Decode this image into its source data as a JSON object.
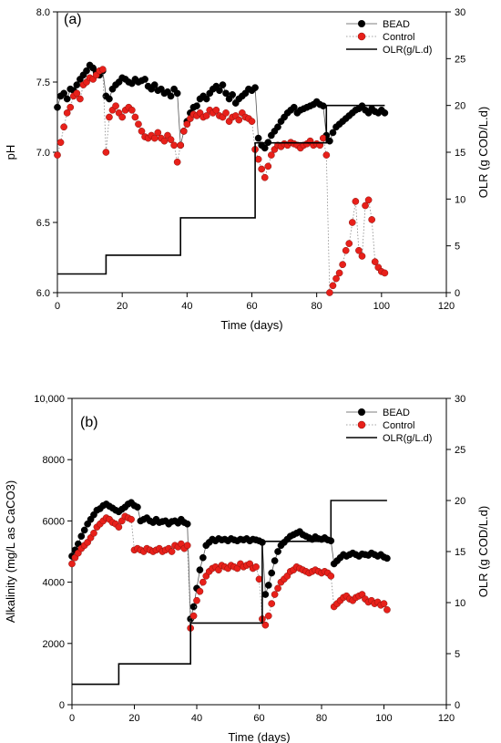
{
  "chart_data": [
    {
      "type": "line",
      "panel_label": "(a)",
      "xlabel": "Time (days)",
      "ylabel": "pH",
      "y2label": "OLR (g COD/L.d)",
      "xlim": [
        0,
        120
      ],
      "ylim": [
        6.0,
        8.0
      ],
      "y2lim": [
        0,
        30
      ],
      "xticks": [
        0,
        20,
        40,
        60,
        80,
        100,
        120
      ],
      "yticks": [
        6.0,
        6.5,
        7.0,
        7.5,
        8.0
      ],
      "y2ticks": [
        0,
        5,
        10,
        15,
        20,
        25,
        30
      ],
      "ytick_labels": [
        "6.0",
        "6.5",
        "7.0",
        "7.5",
        "8.0"
      ],
      "legend_position": "top-right",
      "series": [
        {
          "name": "BEAD",
          "axis": "left",
          "style": "black-dots-line",
          "color": "#000000",
          "x": [
            0,
            1,
            2,
            3,
            4,
            5,
            6,
            7,
            8,
            9,
            10,
            11,
            12,
            13,
            14,
            15,
            16,
            17,
            18,
            19,
            20,
            21,
            22,
            23,
            24,
            25,
            26,
            27,
            28,
            29,
            30,
            31,
            32,
            33,
            34,
            35,
            36,
            37,
            38,
            39,
            40,
            41,
            42,
            43,
            44,
            45,
            46,
            47,
            48,
            49,
            50,
            51,
            52,
            53,
            54,
            55,
            56,
            57,
            58,
            59,
            60,
            61,
            62,
            63,
            64,
            65,
            66,
            67,
            68,
            69,
            70,
            71,
            72,
            73,
            74,
            75,
            76,
            77,
            78,
            79,
            80,
            81,
            82,
            83,
            84,
            85,
            86,
            87,
            88,
            89,
            90,
            91,
            92,
            93,
            94,
            95,
            96,
            97,
            98,
            99,
            100,
            101
          ],
          "y": [
            7.32,
            7.4,
            7.42,
            7.38,
            7.45,
            7.44,
            7.48,
            7.52,
            7.55,
            7.58,
            7.62,
            7.6,
            7.57,
            7.55,
            7.58,
            7.4,
            7.38,
            7.45,
            7.48,
            7.5,
            7.53,
            7.52,
            7.5,
            7.49,
            7.52,
            7.5,
            7.51,
            7.52,
            7.47,
            7.45,
            7.48,
            7.44,
            7.45,
            7.42,
            7.43,
            7.4,
            7.45,
            7.42,
            7.05,
            7.15,
            7.22,
            7.28,
            7.32,
            7.33,
            7.38,
            7.4,
            7.38,
            7.42,
            7.45,
            7.47,
            7.44,
            7.48,
            7.42,
            7.38,
            7.41,
            7.35,
            7.38,
            7.4,
            7.42,
            7.45,
            7.44,
            7.46,
            7.1,
            7.05,
            7.03,
            7.07,
            7.12,
            7.15,
            7.18,
            7.22,
            7.25,
            7.28,
            7.3,
            7.32,
            7.28,
            7.3,
            7.31,
            7.32,
            7.33,
            7.34,
            7.36,
            7.34,
            7.33,
            7.12,
            7.08,
            7.14,
            7.18,
            7.2,
            7.22,
            7.24,
            7.26,
            7.28,
            7.3,
            7.31,
            7.33,
            7.3,
            7.28,
            7.31,
            7.29,
            7.28,
            7.3,
            7.28
          ]
        },
        {
          "name": "Control",
          "axis": "left",
          "style": "red-dots-dotted",
          "color": "#e8201a",
          "x": [
            0,
            1,
            2,
            3,
            4,
            5,
            6,
            7,
            8,
            9,
            10,
            11,
            12,
            13,
            14,
            15,
            16,
            17,
            18,
            19,
            20,
            21,
            22,
            23,
            24,
            25,
            26,
            27,
            28,
            29,
            30,
            31,
            32,
            33,
            34,
            35,
            36,
            37,
            38,
            39,
            40,
            41,
            42,
            43,
            44,
            45,
            46,
            47,
            48,
            49,
            50,
            51,
            52,
            53,
            54,
            55,
            56,
            57,
            58,
            59,
            60,
            61,
            62,
            63,
            64,
            65,
            66,
            67,
            68,
            69,
            70,
            71,
            72,
            73,
            74,
            75,
            76,
            77,
            78,
            79,
            80,
            81,
            82,
            83,
            84,
            85,
            86,
            87,
            88,
            89,
            90,
            91,
            92,
            93,
            94,
            95,
            96,
            97,
            98,
            99,
            100,
            101
          ],
          "y": [
            6.98,
            7.07,
            7.18,
            7.28,
            7.32,
            7.4,
            7.42,
            7.38,
            7.48,
            7.5,
            7.53,
            7.52,
            7.55,
            7.58,
            7.59,
            7.0,
            7.25,
            7.3,
            7.33,
            7.28,
            7.25,
            7.3,
            7.32,
            7.3,
            7.25,
            7.2,
            7.15,
            7.11,
            7.1,
            7.12,
            7.1,
            7.14,
            7.1,
            7.08,
            7.12,
            7.09,
            7.05,
            6.93,
            7.05,
            7.15,
            7.2,
            7.24,
            7.27,
            7.26,
            7.28,
            7.25,
            7.26,
            7.3,
            7.28,
            7.3,
            7.26,
            7.25,
            7.28,
            7.22,
            7.25,
            7.26,
            7.23,
            7.28,
            7.25,
            7.24,
            7.22,
            7.02,
            6.95,
            6.88,
            6.82,
            6.9,
            6.98,
            7.02,
            7.05,
            7.04,
            7.06,
            7.05,
            7.07,
            7.06,
            7.05,
            7.03,
            7.05,
            7.06,
            7.08,
            7.05,
            7.06,
            7.05,
            7.1,
            6.98,
            6.0,
            6.05,
            6.1,
            6.14,
            6.2,
            6.3,
            6.35,
            6.5,
            6.65,
            6.3,
            6.26,
            6.62,
            6.66,
            6.52,
            6.22,
            6.18,
            6.15,
            6.14
          ]
        },
        {
          "name": "OLR(g/L.d)",
          "axis": "right",
          "style": "black-step-line",
          "color": "#000000",
          "x": [
            0,
            15,
            15,
            38,
            38,
            61,
            61,
            83,
            83,
            101
          ],
          "y": [
            2,
            2,
            4,
            4,
            8,
            8,
            16,
            16,
            20,
            20
          ]
        }
      ]
    },
    {
      "type": "line",
      "panel_label": "(b)",
      "xlabel": "Time (days)",
      "ylabel": "Alkalinity (mg/L as CaCO3)",
      "y2label": "OLR (g COD/L.d)",
      "xlim": [
        0,
        120
      ],
      "ylim": [
        0,
        10000
      ],
      "y2lim": [
        0,
        30
      ],
      "xticks": [
        0,
        20,
        40,
        60,
        80,
        100,
        120
      ],
      "yticks": [
        0,
        2000,
        4000,
        6000,
        8000,
        10000
      ],
      "y2ticks": [
        0,
        5,
        10,
        15,
        20,
        25,
        30
      ],
      "ytick_labels": [
        "0",
        "2000",
        "4000",
        "6000",
        "8000",
        "10,000"
      ],
      "legend_position": "top-right",
      "series": [
        {
          "name": "BEAD",
          "axis": "left",
          "style": "black-dots-line",
          "color": "#000000",
          "x": [
            0,
            1,
            2,
            3,
            4,
            5,
            6,
            7,
            8,
            9,
            10,
            11,
            12,
            13,
            14,
            15,
            16,
            17,
            18,
            19,
            20,
            21,
            22,
            23,
            24,
            25,
            26,
            27,
            28,
            29,
            30,
            31,
            32,
            33,
            34,
            35,
            36,
            37,
            38,
            39,
            40,
            41,
            42,
            43,
            44,
            45,
            46,
            47,
            48,
            49,
            50,
            51,
            52,
            53,
            54,
            55,
            56,
            57,
            58,
            59,
            60,
            61,
            62,
            63,
            64,
            65,
            66,
            67,
            68,
            69,
            70,
            71,
            72,
            73,
            74,
            75,
            76,
            77,
            78,
            79,
            80,
            81,
            82,
            83,
            84,
            85,
            86,
            87,
            88,
            89,
            90,
            91,
            92,
            93,
            94,
            95,
            96,
            97,
            98,
            99,
            100,
            101
          ],
          "y": [
            4850,
            5050,
            5250,
            5500,
            5700,
            5900,
            6050,
            6200,
            6350,
            6400,
            6500,
            6550,
            6480,
            6420,
            6350,
            6300,
            6380,
            6450,
            6550,
            6600,
            6500,
            6450,
            6000,
            6050,
            6100,
            6000,
            5950,
            6050,
            5950,
            5980,
            6000,
            5900,
            5980,
            6000,
            5930,
            6050,
            5950,
            5900,
            2800,
            3200,
            3800,
            4400,
            4800,
            5200,
            5300,
            5400,
            5350,
            5420,
            5380,
            5400,
            5350,
            5420,
            5380,
            5350,
            5400,
            5380,
            5420,
            5350,
            5400,
            5380,
            5350,
            5300,
            3600,
            3900,
            4300,
            4700,
            5000,
            5200,
            5300,
            5400,
            5500,
            5550,
            5600,
            5650,
            5550,
            5500,
            5450,
            5400,
            5480,
            5420,
            5400,
            5450,
            5380,
            5350,
            4600,
            4700,
            4800,
            4900,
            4850,
            4900,
            4950,
            4900,
            4850,
            4920,
            4900,
            4880,
            4950,
            4900,
            4850,
            4900,
            4820,
            4780
          ]
        },
        {
          "name": "Control",
          "axis": "left",
          "style": "red-dots-dotted",
          "color": "#e8201a",
          "x": [
            0,
            1,
            2,
            3,
            4,
            5,
            6,
            7,
            8,
            9,
            10,
            11,
            12,
            13,
            14,
            15,
            16,
            17,
            18,
            19,
            20,
            21,
            22,
            23,
            24,
            25,
            26,
            27,
            28,
            29,
            30,
            31,
            32,
            33,
            34,
            35,
            36,
            37,
            38,
            39,
            40,
            41,
            42,
            43,
            44,
            45,
            46,
            47,
            48,
            49,
            50,
            51,
            52,
            53,
            54,
            55,
            56,
            57,
            58,
            59,
            60,
            61,
            62,
            63,
            64,
            65,
            66,
            67,
            68,
            69,
            70,
            71,
            72,
            73,
            74,
            75,
            76,
            77,
            78,
            79,
            80,
            81,
            82,
            83,
            84,
            85,
            86,
            87,
            88,
            89,
            90,
            91,
            92,
            93,
            94,
            95,
            96,
            97,
            98,
            99,
            100,
            101
          ],
          "y": [
            4600,
            4800,
            4950,
            5100,
            5200,
            5300,
            5450,
            5600,
            5800,
            5900,
            6000,
            6100,
            6050,
            5950,
            5900,
            5800,
            6000,
            6150,
            6100,
            6050,
            5050,
            5100,
            5050,
            5000,
            5100,
            5050,
            5000,
            5050,
            5100,
            5000,
            5050,
            5100,
            5000,
            5200,
            5150,
            5250,
            5100,
            5200,
            2500,
            2900,
            3400,
            3700,
            4000,
            4200,
            4350,
            4450,
            4500,
            4400,
            4550,
            4500,
            4450,
            4550,
            4500,
            4450,
            4600,
            4500,
            4550,
            4600,
            4450,
            4500,
            4100,
            2800,
            2600,
            2900,
            3300,
            3600,
            3800,
            4000,
            4100,
            4200,
            4350,
            4400,
            4500,
            4450,
            4400,
            4350,
            4300,
            4350,
            4400,
            4350,
            4300,
            4350,
            4300,
            4200,
            3200,
            3300,
            3400,
            3500,
            3550,
            3450,
            3400,
            3500,
            3550,
            3600,
            3450,
            3350,
            3400,
            3300,
            3350,
            3250,
            3300,
            3100
          ]
        },
        {
          "name": "OLR(g/L.d)",
          "axis": "right",
          "style": "black-step-line",
          "color": "#000000",
          "x": [
            0,
            15,
            15,
            38,
            38,
            61,
            61,
            83,
            83,
            101
          ],
          "y": [
            2,
            2,
            4,
            4,
            8,
            8,
            16,
            16,
            20,
            20
          ]
        }
      ]
    }
  ]
}
